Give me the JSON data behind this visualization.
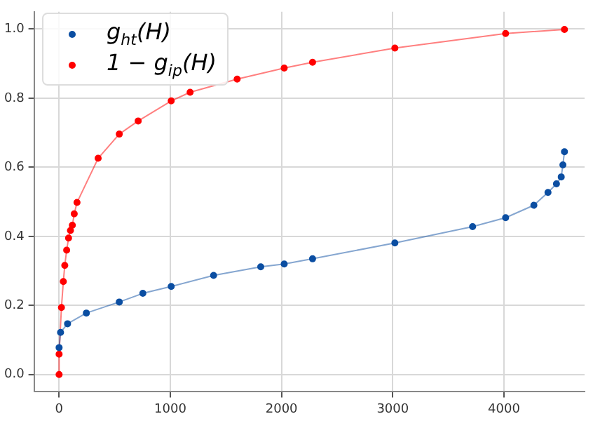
{
  "chart_data": {
    "type": "line",
    "xlim": [
      -225,
      4725
    ],
    "ylim": [
      -0.05,
      1.05
    ],
    "xticks": [
      0,
      1000,
      2000,
      3000,
      4000
    ],
    "yticks": [
      {
        "value": 0,
        "label": "0.0"
      },
      {
        "value": 0.2,
        "label": "0.2"
      },
      {
        "value": 0.4,
        "label": "0.4"
      },
      {
        "value": 0.6,
        "label": "0.6"
      },
      {
        "value": 0.8,
        "label": "0.8"
      },
      {
        "value": 1,
        "label": "1.0"
      }
    ],
    "grid": true,
    "legend": "top left",
    "marker": "circle",
    "series": [
      {
        "name": "g$_{ht}$(H)",
        "color": "#0b4ea2",
        "x": [
          0,
          13,
          76,
          245,
          541,
          753,
          1008,
          1389,
          1813,
          2024,
          2279,
          3019,
          3718,
          4015,
          4269,
          4396,
          4472,
          4515,
          4530,
          4544
        ],
        "values": [
          0.078,
          0.122,
          0.147,
          0.178,
          0.21,
          0.235,
          0.255,
          0.287,
          0.312,
          0.32,
          0.335,
          0.381,
          0.428,
          0.454,
          0.49,
          0.527,
          0.552,
          0.572,
          0.607,
          0.645
        ]
      },
      {
        "name": "1 − g$_{ip}$(H)",
        "color": "#ff0000",
        "x": [
          0,
          0,
          21,
          38,
          51,
          68,
          85,
          102,
          119,
          136,
          161,
          351,
          541,
          711,
          1008,
          1178,
          1601,
          2024,
          2279,
          3019,
          4015,
          4544
        ],
        "values": [
          0.0,
          0.059,
          0.194,
          0.269,
          0.316,
          0.36,
          0.395,
          0.417,
          0.432,
          0.465,
          0.498,
          0.626,
          0.696,
          0.734,
          0.792,
          0.817,
          0.855,
          0.887,
          0.904,
          0.945,
          0.987,
          0.999
        ]
      }
    ]
  }
}
